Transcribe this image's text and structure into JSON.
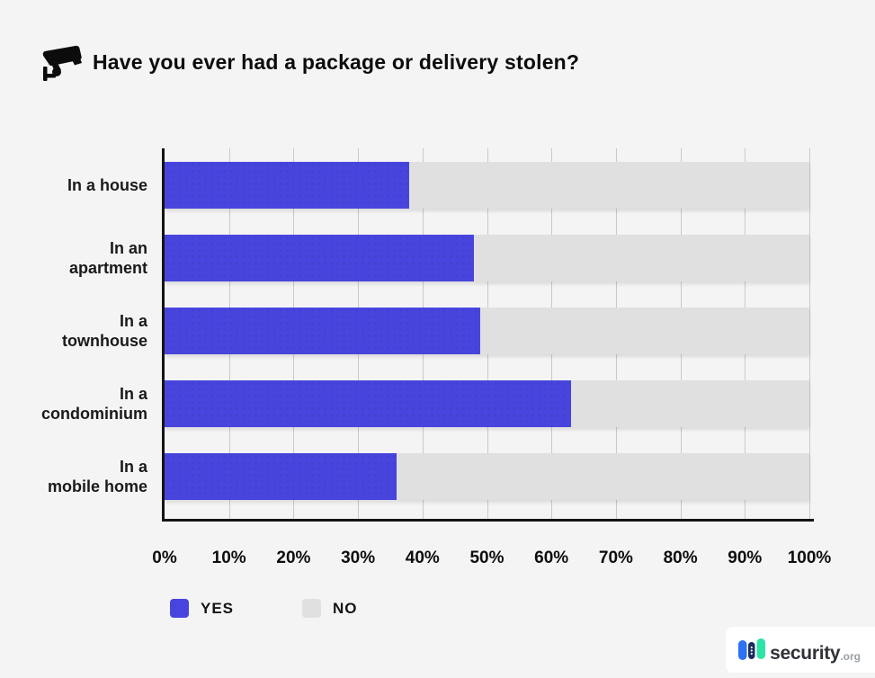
{
  "header": {
    "title": "Have you ever had a package or delivery stolen?",
    "icon": "security-camera-icon"
  },
  "chart_data": {
    "type": "bar",
    "orientation": "horizontal",
    "stacked": true,
    "title": "Have you ever had a package or delivery stolen?",
    "categories": [
      "In a house",
      "In an apartment",
      "In a townhouse",
      "In a condominium",
      "In a mobile home"
    ],
    "categories_display": [
      "In a house",
      "In an\napartment",
      "In a\ntownhouse",
      "In a\ncondominium",
      "In a\nmobile home"
    ],
    "series": [
      {
        "name": "YES",
        "color": "#4845de",
        "values": [
          38,
          48,
          49,
          63,
          36
        ]
      },
      {
        "name": "NO",
        "color": "#e0e0e0",
        "values": [
          62,
          52,
          51,
          37,
          64
        ]
      }
    ],
    "x_axis": {
      "min": 0,
      "max": 100,
      "tick_step": 10,
      "ticks": [
        "0%",
        "10%",
        "20%",
        "30%",
        "40%",
        "50%",
        "60%",
        "70%",
        "80%",
        "90%",
        "100%"
      ],
      "grid": true
    },
    "legend_position": "bottom-left"
  },
  "legend": {
    "yes_label": "YES",
    "no_label": "NO"
  },
  "footer": {
    "logo_text": "security",
    "logo_suffix": ".org"
  },
  "colors": {
    "yes_bar": "#4845de",
    "no_bar": "#e0e0e0",
    "background": "#f5f4f5",
    "gridline": "#c9c9c9",
    "axis": "#141414",
    "logo_blue": "#2d72f5",
    "logo_navy": "#1b2b5e",
    "logo_teal": "#2fe3a6"
  }
}
